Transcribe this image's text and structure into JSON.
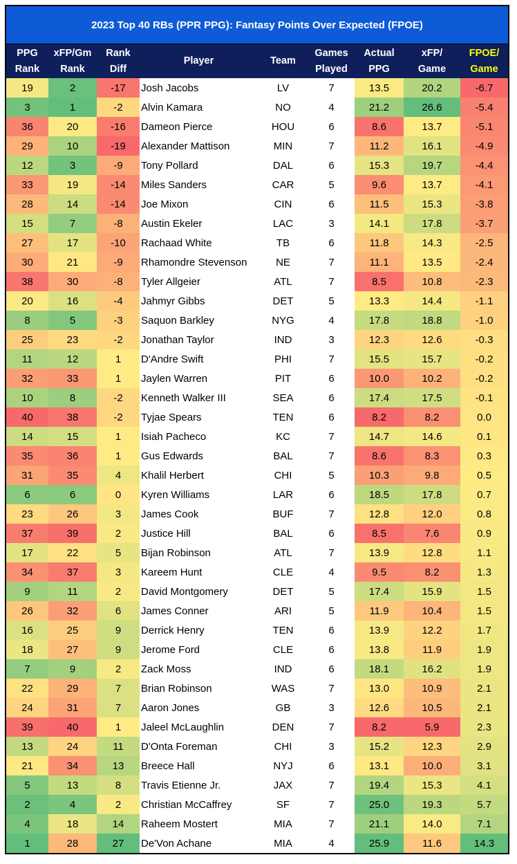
{
  "title": "2023 Top 40 RBs (PPR PPG): Fantasy Points Over Expected (FPOE)",
  "headers": [
    [
      "PPG",
      "Rank"
    ],
    [
      "xFP/Gm",
      "Rank"
    ],
    [
      "Rank",
      "Diff"
    ],
    [
      "Player",
      ""
    ],
    [
      "Team",
      ""
    ],
    [
      "Games",
      "Played"
    ],
    [
      "Actual",
      "PPG"
    ],
    [
      "xFP/",
      "Game"
    ],
    [
      "FPOE/",
      "Game"
    ]
  ],
  "colors": {
    "title_bg": "#0E5BD8",
    "header_bg": "#0F1F5C",
    "highlight_header": "#FFFF00",
    "scale_low": "#F8696B",
    "scale_mid": "#FFEB84",
    "scale_high": "#63BE7B"
  },
  "rows": [
    [
      "19",
      "2",
      "-17",
      "Josh Jacobs",
      "LV",
      "7",
      "13.5",
      "20.2",
      "-6.7"
    ],
    [
      "3",
      "1",
      "-2",
      "Alvin Kamara",
      "NO",
      "4",
      "21.2",
      "26.6",
      "-5.4"
    ],
    [
      "36",
      "20",
      "-16",
      "Dameon Pierce",
      "HOU",
      "6",
      "8.6",
      "13.7",
      "-5.1"
    ],
    [
      "29",
      "10",
      "-19",
      "Alexander Mattison",
      "MIN",
      "7",
      "11.2",
      "16.1",
      "-4.9"
    ],
    [
      "12",
      "3",
      "-9",
      "Tony Pollard",
      "DAL",
      "6",
      "15.3",
      "19.7",
      "-4.4"
    ],
    [
      "33",
      "19",
      "-14",
      "Miles Sanders",
      "CAR",
      "5",
      "9.6",
      "13.7",
      "-4.1"
    ],
    [
      "28",
      "14",
      "-14",
      "Joe Mixon",
      "CIN",
      "6",
      "11.5",
      "15.3",
      "-3.8"
    ],
    [
      "15",
      "7",
      "-8",
      "Austin Ekeler",
      "LAC",
      "3",
      "14.1",
      "17.8",
      "-3.7"
    ],
    [
      "27",
      "17",
      "-10",
      "Rachaad White",
      "TB",
      "6",
      "11.8",
      "14.3",
      "-2.5"
    ],
    [
      "30",
      "21",
      "-9",
      "Rhamondre Stevenson",
      "NE",
      "7",
      "11.1",
      "13.5",
      "-2.4"
    ],
    [
      "38",
      "30",
      "-8",
      "Tyler Allgeier",
      "ATL",
      "7",
      "8.5",
      "10.8",
      "-2.3"
    ],
    [
      "20",
      "16",
      "-4",
      "Jahmyr Gibbs",
      "DET",
      "5",
      "13.3",
      "14.4",
      "-1.1"
    ],
    [
      "8",
      "5",
      "-3",
      "Saquon Barkley",
      "NYG",
      "4",
      "17.8",
      "18.8",
      "-1.0"
    ],
    [
      "25",
      "23",
      "-2",
      "Jonathan Taylor",
      "IND",
      "3",
      "12.3",
      "12.6",
      "-0.3"
    ],
    [
      "11",
      "12",
      "1",
      "D'Andre Swift",
      "PHI",
      "7",
      "15.5",
      "15.7",
      "-0.2"
    ],
    [
      "32",
      "33",
      "1",
      "Jaylen Warren",
      "PIT",
      "6",
      "10.0",
      "10.2",
      "-0.2"
    ],
    [
      "10",
      "8",
      "-2",
      "Kenneth Walker III",
      "SEA",
      "6",
      "17.4",
      "17.5",
      "-0.1"
    ],
    [
      "40",
      "38",
      "-2",
      "Tyjae Spears",
      "TEN",
      "6",
      "8.2",
      "8.2",
      "0.0"
    ],
    [
      "14",
      "15",
      "1",
      "Isiah Pacheco",
      "KC",
      "7",
      "14.7",
      "14.6",
      "0.1"
    ],
    [
      "35",
      "36",
      "1",
      "Gus Edwards",
      "BAL",
      "7",
      "8.6",
      "8.3",
      "0.3"
    ],
    [
      "31",
      "35",
      "4",
      "Khalil Herbert",
      "CHI",
      "5",
      "10.3",
      "9.8",
      "0.5"
    ],
    [
      "6",
      "6",
      "0",
      "Kyren Williams",
      "LAR",
      "6",
      "18.5",
      "17.8",
      "0.7"
    ],
    [
      "23",
      "26",
      "3",
      "James Cook",
      "BUF",
      "7",
      "12.8",
      "12.0",
      "0.8"
    ],
    [
      "37",
      "39",
      "2",
      "Justice Hill",
      "BAL",
      "6",
      "8.5",
      "7.6",
      "0.9"
    ],
    [
      "17",
      "22",
      "5",
      "Bijan Robinson",
      "ATL",
      "7",
      "13.9",
      "12.8",
      "1.1"
    ],
    [
      "34",
      "37",
      "3",
      "Kareem Hunt",
      "CLE",
      "4",
      "9.5",
      "8.2",
      "1.3"
    ],
    [
      "9",
      "11",
      "2",
      "David Montgomery",
      "DET",
      "5",
      "17.4",
      "15.9",
      "1.5"
    ],
    [
      "26",
      "32",
      "6",
      "James Conner",
      "ARI",
      "5",
      "11.9",
      "10.4",
      "1.5"
    ],
    [
      "16",
      "25",
      "9",
      "Derrick Henry",
      "TEN",
      "6",
      "13.9",
      "12.2",
      "1.7"
    ],
    [
      "18",
      "27",
      "9",
      "Jerome Ford",
      "CLE",
      "6",
      "13.8",
      "11.9",
      "1.9"
    ],
    [
      "7",
      "9",
      "2",
      "Zack Moss",
      "IND",
      "6",
      "18.1",
      "16.2",
      "1.9"
    ],
    [
      "22",
      "29",
      "7",
      "Brian Robinson",
      "WAS",
      "7",
      "13.0",
      "10.9",
      "2.1"
    ],
    [
      "24",
      "31",
      "7",
      "Aaron Jones",
      "GB",
      "3",
      "12.6",
      "10.5",
      "2.1"
    ],
    [
      "39",
      "40",
      "1",
      "Jaleel McLaughlin",
      "DEN",
      "7",
      "8.2",
      "5.9",
      "2.3"
    ],
    [
      "13",
      "24",
      "11",
      "D'Onta Foreman",
      "CHI",
      "3",
      "15.2",
      "12.3",
      "2.9"
    ],
    [
      "21",
      "34",
      "13",
      "Breece Hall",
      "NYJ",
      "6",
      "13.1",
      "10.0",
      "3.1"
    ],
    [
      "5",
      "13",
      "8",
      "Travis Etienne Jr.",
      "JAX",
      "7",
      "19.4",
      "15.3",
      "4.1"
    ],
    [
      "2",
      "4",
      "2",
      "Christian McCaffrey",
      "SF",
      "7",
      "25.0",
      "19.3",
      "5.7"
    ],
    [
      "4",
      "18",
      "14",
      "Raheem Mostert",
      "MIA",
      "7",
      "21.1",
      "14.0",
      "7.1"
    ],
    [
      "1",
      "28",
      "27",
      "De'Von Achane",
      "MIA",
      "4",
      "25.9",
      "11.6",
      "14.3"
    ]
  ]
}
